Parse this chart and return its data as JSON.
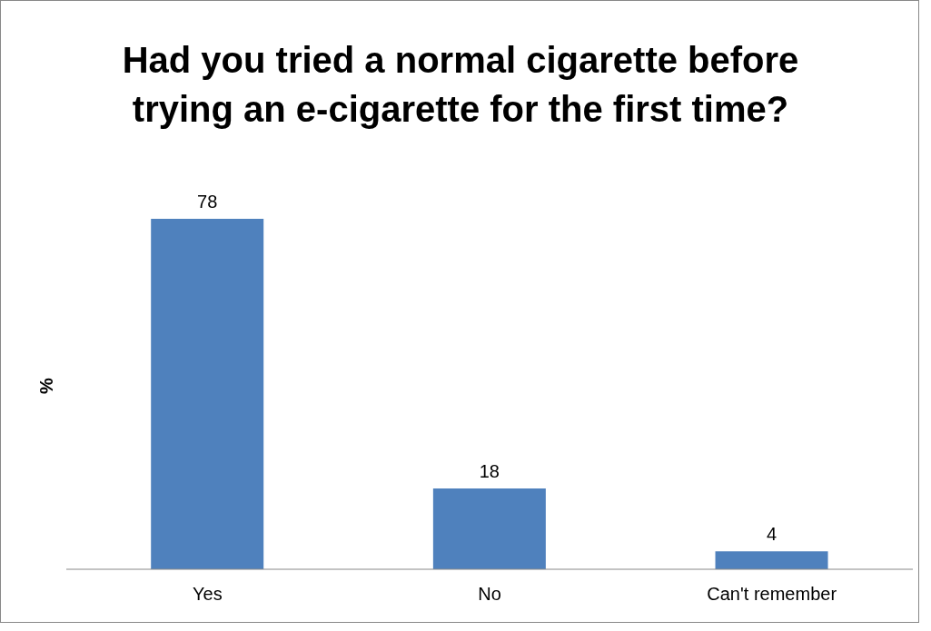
{
  "chart_data": {
    "type": "bar",
    "title": "Had you tried a normal cigarette before trying an e-cigarette for the first time?",
    "ylabel": "%",
    "categories": [
      "Yes",
      "No",
      "Can't remember"
    ],
    "values": [
      78,
      18,
      4
    ],
    "color": "#4f81bd",
    "data_labels": true,
    "tick_labels": "x",
    "grid": false,
    "legend": false
  }
}
